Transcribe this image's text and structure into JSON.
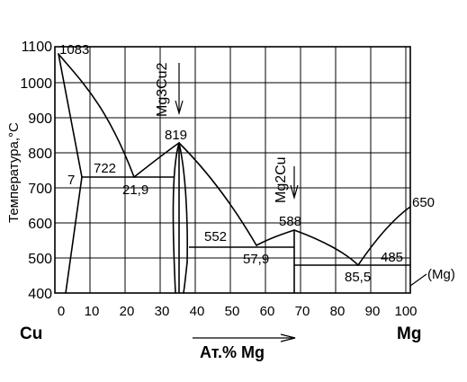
{
  "diagram": {
    "y_axis_title": "Температура,°С",
    "y_ticks": [
      "400",
      "500",
      "600",
      "700",
      "800",
      "900",
      "1000",
      "1100"
    ],
    "x_ticks": [
      "0",
      "10",
      "20",
      "30",
      "40",
      "50",
      "60",
      "70",
      "80",
      "90",
      "100"
    ],
    "left_component": "Cu",
    "right_component": "Mg",
    "x_axis_title": "Ат.% Mg",
    "phase_labels": {
      "mg3cu2": "Mg3Cu2",
      "mg2cu": "Mg2Cu",
      "mg_solid": "(Mg)"
    },
    "annotations": {
      "cu_melt": "1083",
      "eutectic1_temp": "722",
      "cu_solubility": "7",
      "eutectic1_comp": "21,9",
      "mg3cu2_melt": "819",
      "eutectic2_temp": "552",
      "eutectic2_comp": "57,9",
      "mg2cu_melt": "588",
      "mg_melt": "650",
      "eutectic3_temp": "485",
      "eutectic3_comp": "85,5"
    }
  }
}
